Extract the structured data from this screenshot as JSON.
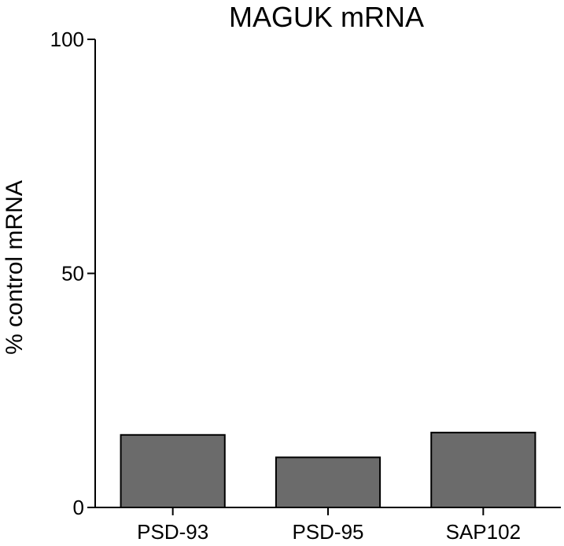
{
  "chart_data": {
    "type": "bar",
    "title": "MAGUK mRNA",
    "xlabel": "",
    "ylabel": "% control mRNA",
    "categories": [
      "PSD-93",
      "PSD-95",
      "SAP102"
    ],
    "values": [
      15.5,
      10.7,
      16.0
    ],
    "ylim": [
      0,
      100
    ],
    "yticks": [
      "0",
      "50",
      "100"
    ],
    "grid": false,
    "legend": "none",
    "bar_color": "#6b6b6b",
    "bar_edge_color": "#000000"
  }
}
